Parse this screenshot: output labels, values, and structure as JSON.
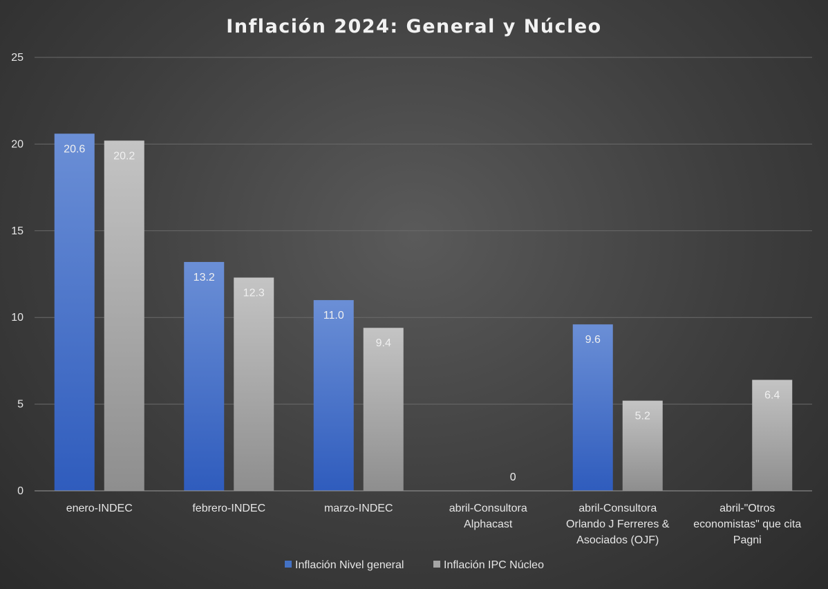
{
  "chart_data": {
    "type": "bar",
    "title": "Inflación 2024: General y Núcleo",
    "xlabel": "",
    "ylabel": "",
    "ylim": [
      0,
      25
    ],
    "yticks": [
      "0",
      "5",
      "10",
      "15",
      "20",
      "25"
    ],
    "grid": true,
    "legend_position": "bottom",
    "categories": [
      [
        "enero-INDEC"
      ],
      [
        "febrero-INDEC"
      ],
      [
        "marzo-INDEC"
      ],
      [
        "abril-Consultora",
        "Alphacast"
      ],
      [
        "abril-Consultora",
        "Orlando J Ferreres &",
        "Asociados (OJF)"
      ],
      [
        "abril-\"Otros",
        "economistas\" que cita",
        "Pagni"
      ]
    ],
    "series": [
      {
        "name": "Inflación Nivel general",
        "color": "#4472c4",
        "values": [
          20.6,
          13.2,
          11.0,
          null,
          9.6,
          null
        ],
        "labels": [
          "20.6",
          "13.2",
          "11.0",
          "",
          "9.6",
          ""
        ]
      },
      {
        "name": "Inflación IPC Núcleo",
        "color": "#a5a5a5",
        "values": [
          20.2,
          12.3,
          9.4,
          0,
          5.2,
          6.4
        ],
        "labels": [
          "20.2",
          "12.3",
          "9.4",
          "0",
          "5.2",
          "6.4"
        ]
      }
    ]
  }
}
